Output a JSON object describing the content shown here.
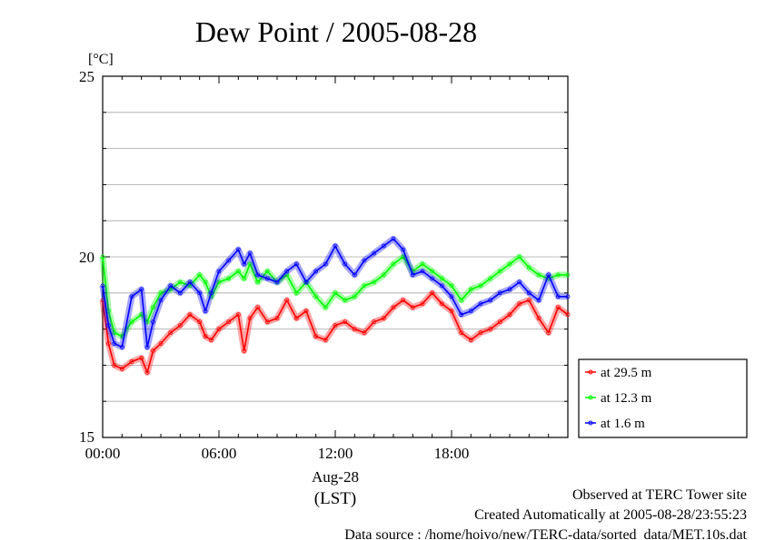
{
  "chart_data": {
    "type": "line",
    "title": "Dew Point / 2005-08-28",
    "unit": "[°C]",
    "ylim": [
      15,
      25
    ],
    "y_ticks": [
      "15",
      "20",
      "25"
    ],
    "x_ticks": [
      "00:00",
      "06:00",
      "12:00",
      "18:00"
    ],
    "x_date": "Aug-28",
    "x_tz": "(LST)",
    "xlim_hours": [
      0,
      24
    ],
    "grid": true,
    "legend_position": "right",
    "series": [
      {
        "name": "at 29.5 m",
        "color": "#ff0000",
        "x": [
          0,
          0.3,
          0.6,
          1,
          1.5,
          2,
          2.3,
          2.6,
          3,
          3.5,
          4,
          4.5,
          5,
          5.3,
          5.6,
          6,
          6.5,
          7,
          7.3,
          7.6,
          8,
          8.5,
          9,
          9.5,
          10,
          10.5,
          11,
          11.5,
          12,
          12.5,
          13,
          13.5,
          14,
          14.5,
          15,
          15.5,
          16,
          16.5,
          17,
          17.5,
          18,
          18.5,
          19,
          19.5,
          20,
          20.5,
          21,
          21.5,
          22,
          22.5,
          23,
          23.5,
          24
        ],
        "y": [
          18.8,
          17.6,
          17.0,
          16.9,
          17.1,
          17.2,
          16.8,
          17.4,
          17.6,
          17.9,
          18.1,
          18.4,
          18.2,
          17.8,
          17.7,
          18.0,
          18.2,
          18.4,
          17.4,
          18.3,
          18.6,
          18.2,
          18.3,
          18.8,
          18.3,
          18.5,
          17.8,
          17.7,
          18.1,
          18.2,
          18.0,
          17.9,
          18.2,
          18.3,
          18.6,
          18.8,
          18.6,
          18.7,
          19.0,
          18.7,
          18.5,
          17.9,
          17.7,
          17.9,
          18.0,
          18.2,
          18.4,
          18.7,
          18.8,
          18.3,
          17.9,
          18.6,
          18.4
        ]
      },
      {
        "name": "at 12.3 m",
        "color": "#00ff00",
        "x": [
          0,
          0.3,
          0.6,
          1,
          1.5,
          2,
          2.3,
          2.6,
          3,
          3.5,
          4,
          4.5,
          5,
          5.3,
          5.6,
          6,
          6.5,
          7,
          7.3,
          7.6,
          8,
          8.5,
          9,
          9.5,
          10,
          10.5,
          11,
          11.5,
          12,
          12.5,
          13,
          13.5,
          14,
          14.5,
          15,
          15.5,
          16,
          16.5,
          17,
          17.5,
          18,
          18.5,
          19,
          19.5,
          20,
          20.5,
          21,
          21.5,
          22,
          22.5,
          23,
          23.5,
          24
        ],
        "y": [
          20.0,
          18.5,
          17.9,
          17.8,
          18.2,
          18.4,
          18.2,
          18.6,
          19.0,
          19.1,
          19.3,
          19.2,
          19.5,
          19.3,
          18.9,
          19.3,
          19.4,
          19.6,
          19.4,
          19.8,
          19.3,
          19.6,
          19.3,
          19.5,
          19.0,
          19.3,
          18.9,
          18.6,
          19.0,
          18.8,
          18.9,
          19.2,
          19.3,
          19.5,
          19.8,
          20.0,
          19.6,
          19.8,
          19.6,
          19.4,
          19.2,
          18.8,
          19.1,
          19.2,
          19.4,
          19.6,
          19.8,
          20.0,
          19.7,
          19.5,
          19.4,
          19.5,
          19.5
        ]
      },
      {
        "name": "at 1.6 m",
        "color": "#0000ff",
        "x": [
          0,
          0.3,
          0.6,
          1,
          1.5,
          2,
          2.3,
          2.6,
          3,
          3.5,
          4,
          4.5,
          5,
          5.3,
          5.6,
          6,
          6.5,
          7,
          7.3,
          7.6,
          8,
          8.5,
          9,
          9.5,
          10,
          10.5,
          11,
          11.5,
          12,
          12.5,
          13,
          13.5,
          14,
          14.5,
          15,
          15.5,
          16,
          16.5,
          17,
          17.5,
          18,
          18.5,
          19,
          19.5,
          20,
          20.5,
          21,
          21.5,
          22,
          22.5,
          23,
          23.5,
          24
        ],
        "y": [
          19.2,
          18.1,
          17.6,
          17.5,
          18.9,
          19.1,
          17.5,
          18.2,
          18.8,
          19.2,
          19.0,
          19.3,
          19.0,
          18.5,
          19.0,
          19.6,
          19.9,
          20.2,
          19.8,
          20.1,
          19.5,
          19.4,
          19.3,
          19.6,
          19.8,
          19.3,
          19.6,
          19.8,
          20.3,
          19.8,
          19.5,
          19.9,
          20.1,
          20.3,
          20.5,
          20.2,
          19.5,
          19.6,
          19.4,
          19.2,
          18.9,
          18.4,
          18.5,
          18.7,
          18.8,
          19.0,
          19.1,
          19.3,
          19.0,
          18.8,
          19.5,
          18.9,
          18.9
        ]
      }
    ]
  },
  "footer": {
    "site": "Observed at TERC Tower site",
    "created": "Created Automatically at 2005-08-28/23:55:23",
    "source": "Data source : /home/hoivo/new/TERC-data/sorted_data/MET.10s.dat"
  }
}
